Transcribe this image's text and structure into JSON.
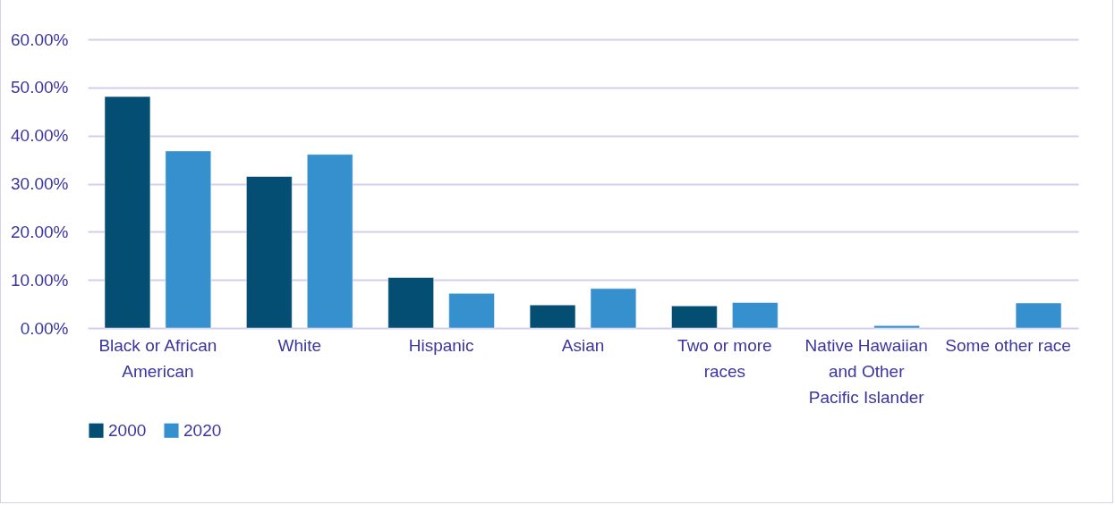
{
  "chart_data": {
    "type": "bar",
    "categories": [
      "Black or African American",
      "White",
      "Hispanic",
      "Asian",
      "Two or more races",
      "Native Hawaiian and Other Pacific Islander",
      "Some other race"
    ],
    "series": [
      {
        "name": "2000",
        "color": "#034e72",
        "values": [
          48.1,
          31.5,
          10.5,
          4.8,
          4.6,
          null,
          null
        ]
      },
      {
        "name": "2020",
        "color": "#3590cd",
        "values": [
          36.8,
          36.1,
          7.2,
          8.2,
          5.3,
          0.5,
          5.2
        ]
      }
    ],
    "ylim": [
      0,
      60
    ],
    "yticks": [
      {
        "value": 0,
        "label": "0.00%"
      },
      {
        "value": 10,
        "label": "10.00%"
      },
      {
        "value": 20,
        "label": "20.00%"
      },
      {
        "value": 30,
        "label": "30.00%"
      },
      {
        "value": 40,
        "label": "40.00%"
      },
      {
        "value": 50,
        "label": "50.00%"
      },
      {
        "value": 60,
        "label": "60.00%"
      }
    ],
    "grid": "y",
    "legend": "bottom"
  }
}
